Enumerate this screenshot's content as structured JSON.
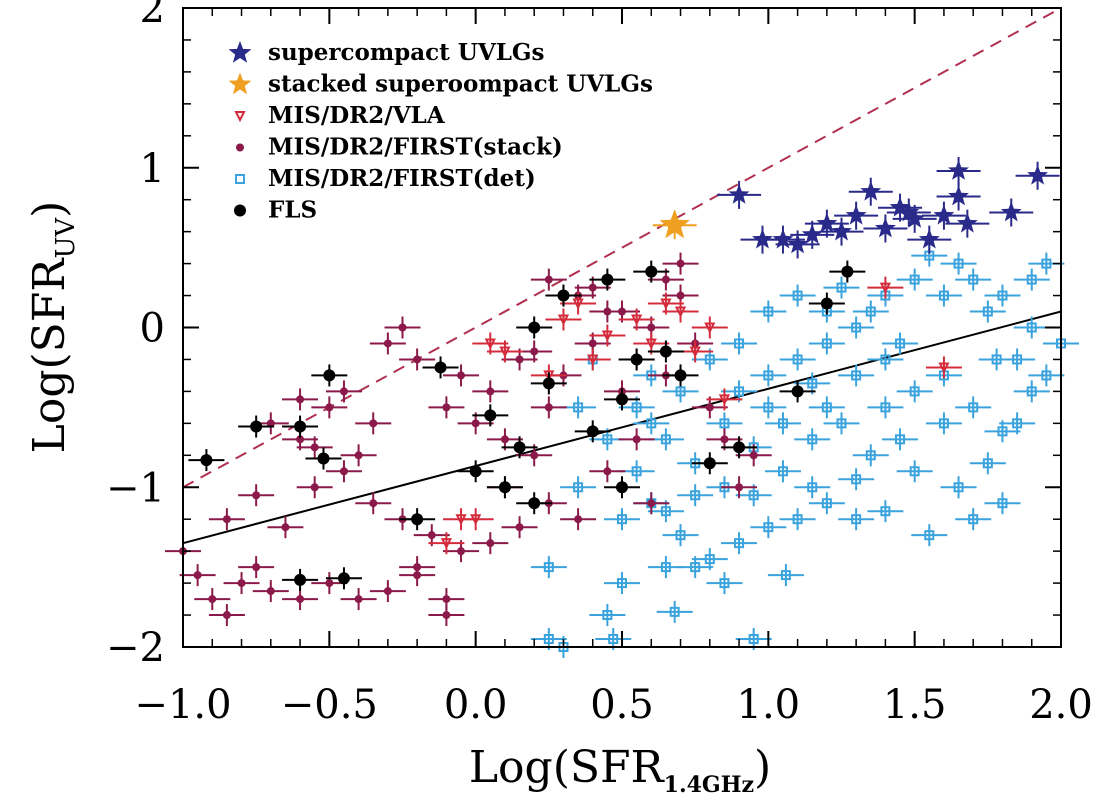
{
  "chart_data": {
    "type": "scatter",
    "title": "",
    "xlabel": {
      "main": "Log(SFR",
      "sub": "1.4GHz",
      "close": ")"
    },
    "ylabel": {
      "main": "Log(SFR",
      "sub": "UV",
      "close": ")"
    },
    "xlim": [
      -1.0,
      2.0
    ],
    "ylim": [
      -2.0,
      2.0
    ],
    "x_ticks": [
      -1.0,
      -0.5,
      0.0,
      0.5,
      1.0,
      1.5,
      2.0
    ],
    "x_tick_labels": [
      "−1.0",
      "−0.5",
      "0.0",
      "0.5",
      "1.0",
      "1.5",
      "2.0"
    ],
    "y_ticks": [
      -2,
      -1,
      0,
      1,
      2
    ],
    "y_tick_labels": [
      "−2",
      "−1",
      "0",
      "1",
      "2"
    ],
    "grid": false,
    "legend_position": "top-left",
    "reference_lines": [
      {
        "style": "dashed",
        "color": "#b03050",
        "points": [
          [
            -1.0,
            -1.0
          ],
          [
            2.0,
            2.0
          ]
        ]
      },
      {
        "style": "solid",
        "color": "#000000",
        "points": [
          [
            -1.0,
            -1.35
          ],
          [
            2.0,
            0.1
          ]
        ]
      }
    ],
    "series": [
      {
        "name": "MIS/DR2/FIRST(det)",
        "marker": "square",
        "color": "#3aa3dd",
        "points": [
          [
            0.25,
            -1.95
          ],
          [
            0.3,
            -2.0
          ],
          [
            0.45,
            -1.8
          ],
          [
            0.47,
            -1.95
          ],
          [
            0.5,
            -1.6
          ],
          [
            0.25,
            -1.5
          ],
          [
            0.68,
            -1.78
          ],
          [
            0.95,
            -1.95
          ],
          [
            1.06,
            -1.55
          ],
          [
            0.6,
            -1.1
          ],
          [
            0.7,
            -1.3
          ],
          [
            0.8,
            -1.45
          ],
          [
            0.9,
            -1.35
          ],
          [
            1.0,
            -1.25
          ],
          [
            1.1,
            -1.2
          ],
          [
            1.2,
            -1.1
          ],
          [
            1.3,
            -1.2
          ],
          [
            1.4,
            -1.15
          ],
          [
            1.55,
            -1.3
          ],
          [
            0.55,
            -0.9
          ],
          [
            0.65,
            -0.7
          ],
          [
            0.75,
            -0.85
          ],
          [
            0.85,
            -0.6
          ],
          [
            0.95,
            -0.75
          ],
          [
            1.05,
            -0.9
          ],
          [
            1.15,
            -0.7
          ],
          [
            1.25,
            -0.6
          ],
          [
            1.35,
            -0.8
          ],
          [
            1.45,
            -0.7
          ],
          [
            1.6,
            -0.6
          ],
          [
            1.7,
            -0.5
          ],
          [
            1.8,
            -0.65
          ],
          [
            1.85,
            -0.6
          ],
          [
            1.9,
            -0.4
          ],
          [
            1.95,
            -0.3
          ],
          [
            1.78,
            -0.2
          ],
          [
            1.85,
            -0.2
          ],
          [
            1.9,
            0.0
          ],
          [
            2.0,
            -0.1
          ],
          [
            0.6,
            -0.3
          ],
          [
            0.7,
            -0.4
          ],
          [
            0.8,
            -0.2
          ],
          [
            0.9,
            -0.1
          ],
          [
            1.0,
            -0.3
          ],
          [
            1.1,
            -0.2
          ],
          [
            1.2,
            -0.1
          ],
          [
            1.3,
            -0.3
          ],
          [
            1.4,
            -0.2
          ],
          [
            1.5,
            -0.4
          ],
          [
            1.6,
            -0.3
          ],
          [
            1.0,
            0.1
          ],
          [
            1.1,
            0.2
          ],
          [
            1.2,
            0.1
          ],
          [
            1.3,
            0.0
          ],
          [
            1.4,
            0.2
          ],
          [
            1.5,
            0.3
          ],
          [
            1.6,
            0.2
          ],
          [
            1.7,
            0.3
          ],
          [
            1.75,
            0.1
          ],
          [
            1.8,
            0.2
          ],
          [
            1.9,
            0.3
          ],
          [
            1.95,
            0.4
          ],
          [
            1.55,
            0.45
          ],
          [
            1.65,
            0.4
          ],
          [
            0.4,
            -0.2
          ],
          [
            0.35,
            -0.5
          ],
          [
            0.45,
            -0.7
          ],
          [
            0.55,
            -0.5
          ],
          [
            0.5,
            -1.2
          ],
          [
            0.35,
            -1.0
          ],
          [
            1.65,
            -1.0
          ],
          [
            1.75,
            -0.85
          ],
          [
            1.7,
            -1.2
          ],
          [
            1.8,
            -1.1
          ],
          [
            1.0,
            -0.5
          ],
          [
            1.2,
            -0.5
          ],
          [
            1.4,
            -0.5
          ],
          [
            1.5,
            -0.9
          ],
          [
            1.3,
            -0.95
          ],
          [
            1.15,
            -1.0
          ],
          [
            0.95,
            -1.05
          ],
          [
            0.85,
            -1.0
          ],
          [
            0.75,
            -1.05
          ],
          [
            0.65,
            -1.15
          ],
          [
            1.35,
            0.1
          ],
          [
            1.45,
            -0.1
          ],
          [
            1.25,
            0.25
          ],
          [
            1.15,
            -0.35
          ],
          [
            1.05,
            -0.6
          ],
          [
            0.9,
            -0.4
          ],
          [
            0.6,
            -0.6
          ],
          [
            0.65,
            -1.5
          ],
          [
            0.75,
            -1.5
          ],
          [
            0.85,
            -1.6
          ]
        ]
      },
      {
        "name": "MIS/DR2/FIRST(stack)",
        "marker": "circle",
        "color": "#8b1a4a",
        "points": [
          [
            -1.0,
            -1.4
          ],
          [
            -0.95,
            -1.55
          ],
          [
            -0.9,
            -1.7
          ],
          [
            -0.85,
            -1.8
          ],
          [
            -0.8,
            -1.6
          ],
          [
            -0.75,
            -1.5
          ],
          [
            -0.7,
            -1.65
          ],
          [
            -0.6,
            -1.7
          ],
          [
            -0.5,
            -1.6
          ],
          [
            -0.4,
            -1.7
          ],
          [
            -0.3,
            -1.65
          ],
          [
            -0.2,
            -1.55
          ],
          [
            -0.1,
            -1.8
          ],
          [
            -0.85,
            -1.2
          ],
          [
            -0.75,
            -1.05
          ],
          [
            -0.65,
            -1.25
          ],
          [
            -0.55,
            -1.0
          ],
          [
            -0.45,
            -0.9
          ],
          [
            -0.35,
            -1.1
          ],
          [
            -0.25,
            -1.2
          ],
          [
            -0.15,
            -1.3
          ],
          [
            -0.05,
            -1.4
          ],
          [
            0.05,
            -1.35
          ],
          [
            0.15,
            -1.25
          ],
          [
            0.25,
            -1.1
          ],
          [
            -0.7,
            -0.6
          ],
          [
            -0.6,
            -0.7
          ],
          [
            -0.5,
            -0.5
          ],
          [
            -0.45,
            -0.4
          ],
          [
            -0.4,
            -0.8
          ],
          [
            -0.35,
            -0.6
          ],
          [
            -0.3,
            -0.1
          ],
          [
            -0.25,
            0.0
          ],
          [
            -0.2,
            -0.2
          ],
          [
            -0.1,
            -0.5
          ],
          [
            -0.05,
            -0.3
          ],
          [
            0.0,
            -0.6
          ],
          [
            0.05,
            -0.4
          ],
          [
            0.1,
            -0.7
          ],
          [
            0.15,
            -0.2
          ],
          [
            0.2,
            -0.8
          ],
          [
            0.25,
            -0.5
          ],
          [
            0.3,
            -0.3
          ],
          [
            0.35,
            0.2
          ],
          [
            0.4,
            -0.1
          ],
          [
            0.45,
            0.1
          ],
          [
            0.5,
            -0.4
          ],
          [
            0.55,
            -0.2
          ],
          [
            0.6,
            0.0
          ],
          [
            0.65,
            0.3
          ],
          [
            0.7,
            0.2
          ],
          [
            0.75,
            -0.1
          ],
          [
            0.8,
            -0.5
          ],
          [
            0.85,
            -0.7
          ],
          [
            0.9,
            -1.0
          ],
          [
            0.95,
            -0.8
          ],
          [
            0.3,
            0.2
          ],
          [
            0.25,
            0.3
          ],
          [
            0.45,
            -0.9
          ],
          [
            0.6,
            -1.1
          ],
          [
            0.55,
            -0.7
          ],
          [
            0.7,
            0.4
          ],
          [
            0.65,
            -0.3
          ],
          [
            -0.55,
            -0.75
          ],
          [
            -0.6,
            -0.45
          ],
          [
            -0.1,
            -1.7
          ],
          [
            -0.2,
            -1.5
          ],
          [
            0.1,
            -1.0
          ],
          [
            0.35,
            -1.2
          ],
          [
            0.2,
            -0.15
          ],
          [
            0.4,
            0.25
          ],
          [
            0.5,
            0.1
          ]
        ]
      },
      {
        "name": "MIS/DR2/VLA",
        "marker": "triangle-down",
        "color": "#d42c3c",
        "points": [
          [
            -0.1,
            -1.35
          ],
          [
            -0.05,
            -1.2
          ],
          [
            0.05,
            -0.1
          ],
          [
            0.1,
            -0.15
          ],
          [
            0.25,
            -0.3
          ],
          [
            0.3,
            0.05
          ],
          [
            0.35,
            0.15
          ],
          [
            0.4,
            -0.2
          ],
          [
            0.45,
            -0.05
          ],
          [
            0.55,
            0.05
          ],
          [
            0.6,
            -0.1
          ],
          [
            0.65,
            0.15
          ],
          [
            0.7,
            0.1
          ],
          [
            0.75,
            -0.15
          ],
          [
            0.8,
            0.0
          ],
          [
            1.4,
            0.25
          ],
          [
            1.6,
            -0.25
          ],
          [
            0.85,
            -0.45
          ],
          [
            0.0,
            -1.2
          ]
        ]
      },
      {
        "name": "FLS",
        "marker": "circle",
        "color": "#000000",
        "points": [
          [
            -0.92,
            -0.83
          ],
          [
            -0.75,
            -0.62
          ],
          [
            -0.6,
            -0.62
          ],
          [
            -0.52,
            -0.82
          ],
          [
            -0.5,
            -0.3
          ],
          [
            -0.6,
            -1.58
          ],
          [
            -0.45,
            -1.57
          ],
          [
            -0.12,
            -0.25
          ],
          [
            0.0,
            -0.9
          ],
          [
            0.05,
            -0.55
          ],
          [
            0.1,
            -1.0
          ],
          [
            0.15,
            -0.75
          ],
          [
            0.3,
            0.2
          ],
          [
            0.45,
            0.3
          ],
          [
            0.5,
            -0.45
          ],
          [
            0.55,
            -0.2
          ],
          [
            0.6,
            0.35
          ],
          [
            0.65,
            -0.15
          ],
          [
            0.8,
            -0.85
          ],
          [
            0.5,
            -1.0
          ],
          [
            0.25,
            -0.35
          ],
          [
            0.7,
            -0.3
          ],
          [
            0.2,
            -1.1
          ],
          [
            0.9,
            -0.75
          ],
          [
            1.2,
            0.15
          ],
          [
            1.27,
            0.35
          ],
          [
            1.1,
            -0.4
          ],
          [
            -0.2,
            -1.2
          ],
          [
            0.2,
            0.0
          ],
          [
            0.4,
            -0.65
          ]
        ]
      },
      {
        "name": "supercompact UVLGs",
        "marker": "star",
        "color": "#2a2a8a",
        "points": [
          [
            0.9,
            0.83
          ],
          [
            0.98,
            0.55
          ],
          [
            1.05,
            0.55
          ],
          [
            1.1,
            0.52
          ],
          [
            1.15,
            0.58
          ],
          [
            1.2,
            0.65
          ],
          [
            1.25,
            0.6
          ],
          [
            1.3,
            0.7
          ],
          [
            1.35,
            0.85
          ],
          [
            1.4,
            0.62
          ],
          [
            1.45,
            0.75
          ],
          [
            1.5,
            0.68
          ],
          [
            1.55,
            0.55
          ],
          [
            1.6,
            0.7
          ],
          [
            1.65,
            0.98
          ],
          [
            1.65,
            0.82
          ],
          [
            1.68,
            0.65
          ],
          [
            1.83,
            0.72
          ],
          [
            1.92,
            0.95
          ],
          [
            1.48,
            0.72
          ]
        ]
      },
      {
        "name": "stacked supercompact UVLGs",
        "marker": "star",
        "color": "#f0a020",
        "points": [
          [
            0.68,
            0.64
          ]
        ]
      }
    ]
  },
  "legend": [
    {
      "label": "supercompact UVLGs",
      "marker": "star",
      "color": "#2a2a8a"
    },
    {
      "label": "stacked superoompact UVLGs",
      "marker": "star",
      "color": "#f0a020"
    },
    {
      "label": "MIS/DR2/VLA",
      "marker": "triangle-down",
      "color": "#d42c3c"
    },
    {
      "label": "MIS/DR2/FIRST(stack)",
      "marker": "circle",
      "color": "#8b1a4a"
    },
    {
      "label": "MIS/DR2/FIRST(det)",
      "marker": "square",
      "color": "#3aa3dd"
    },
    {
      "label": "FLS",
      "marker": "circle",
      "color": "#000000"
    }
  ]
}
